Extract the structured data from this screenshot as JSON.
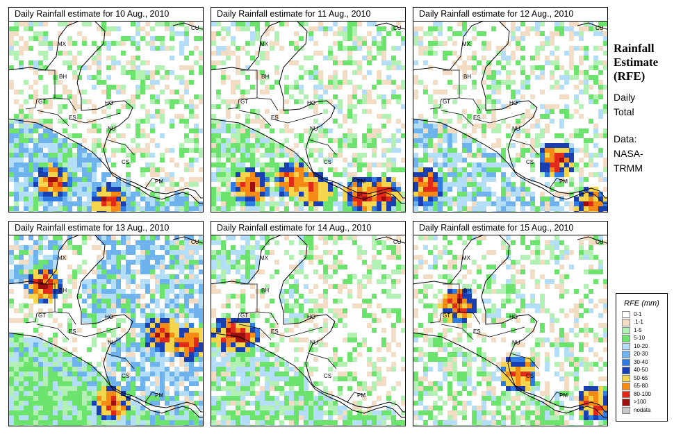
{
  "panels": [
    {
      "title": "Daily Rainfall estimate for  10 Aug., 2010",
      "regime": "south",
      "hot": [
        [
          75,
          262
        ],
        [
          155,
          290
        ]
      ]
    },
    {
      "title": "Daily Rainfall estimate for  11 Aug., 2010",
      "regime": "pacific",
      "hot": [
        [
          450,
          270
        ],
        [
          420,
          258
        ],
        [
          360,
          268
        ],
        [
          520,
          280
        ],
        [
          550,
          278
        ]
      ]
    },
    {
      "title": "Daily Rainfall estimate for  12 Aug., 2010",
      "regime": "east",
      "hot": [
        [
          800,
          230
        ],
        [
          850,
          295
        ],
        [
          612,
          268
        ]
      ]
    },
    {
      "title": "Daily Rainfall estimate for  13 Aug., 2010",
      "regime": "heavy",
      "hot": [
        [
          160,
          580
        ],
        [
          62,
          410
        ],
        [
          270,
          492
        ],
        [
          232,
          480
        ]
      ]
    },
    {
      "title": "Daily Rainfall estimate for  14 Aug., 2010",
      "regime": "west",
      "hot": [
        [
          330,
          480
        ],
        [
          345,
          482
        ]
      ]
    },
    {
      "title": "Daily Rainfall estimate for  15 Aug., 2010",
      "regime": "light",
      "hot": [
        [
          658,
          438
        ],
        [
          745,
          538
        ],
        [
          855,
          580
        ]
      ]
    }
  ],
  "country_labels": [
    "MX",
    "CU",
    "BH",
    "GT",
    "HO",
    "ES",
    "NU",
    "CS",
    "PM"
  ],
  "side_title": [
    "Rainfall",
    "Estimate",
    "(RFE)"
  ],
  "side_notes": [
    "Daily",
    "Total",
    "Data:",
    "NASA-",
    "TRMM"
  ],
  "legend": {
    "title": "RFE (mm)",
    "items": [
      {
        "label": "0-1",
        "color": "#ffffff"
      },
      {
        "label": ".1-1",
        "color": "#f2dcc4"
      },
      {
        "label": "1-5",
        "color": "#b3f0b3"
      },
      {
        "label": "5-10",
        "color": "#6ce36c"
      },
      {
        "label": "10-20",
        "color": "#b4ddf7"
      },
      {
        "label": "20-30",
        "color": "#6fb3ee"
      },
      {
        "label": "30-40",
        "color": "#2f7de3"
      },
      {
        "label": "40-50",
        "color": "#1a3fb0"
      },
      {
        "label": "50-65",
        "color": "#f5d54d"
      },
      {
        "label": "65-80",
        "color": "#f58a14"
      },
      {
        "label": "80-100",
        "color": "#e12a1a"
      },
      {
        "label": ">100",
        "color": "#9e1010"
      },
      {
        "label": "nodata",
        "color": "#c8c8c8"
      }
    ]
  }
}
